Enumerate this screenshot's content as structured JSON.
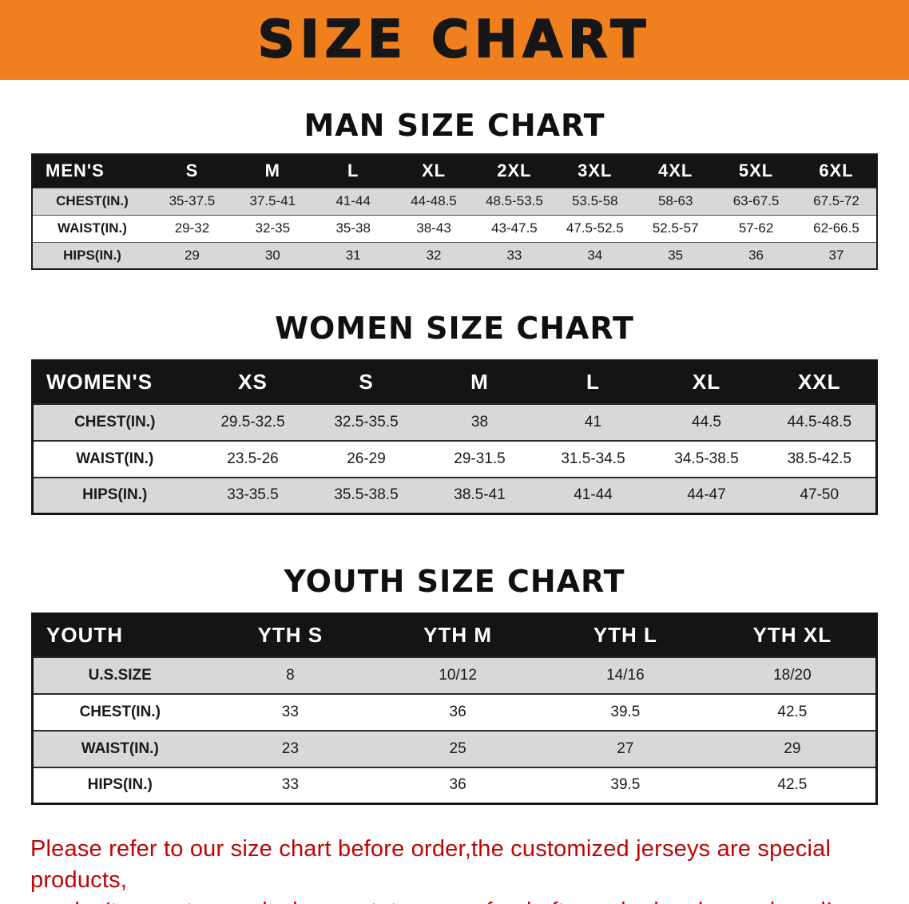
{
  "banner": {
    "title": "SIZE CHART",
    "bg": "#F0801E"
  },
  "sections": [
    {
      "heading": "MAN SIZE CHART",
      "table": {
        "header": [
          "MEN'S",
          "S",
          "M",
          "L",
          "XL",
          "2XL",
          "3XL",
          "4XL",
          "5XL",
          "6XL"
        ],
        "rows": [
          [
            "CHEST(IN.)",
            "35-37.5",
            "37.5-41",
            "41-44",
            "44-48.5",
            "48.5-53.5",
            "53.5-58",
            "58-63",
            "63-67.5",
            "67.5-72"
          ],
          [
            "WAIST(IN.)",
            "29-32",
            "32-35",
            "35-38",
            "38-43",
            "43-47.5",
            "47.5-52.5",
            "52.5-57",
            "57-62",
            "62-66.5"
          ],
          [
            "HIPS(IN.)",
            "29",
            "30",
            "31",
            "32",
            "33",
            "34",
            "35",
            "36",
            "37"
          ]
        ]
      }
    },
    {
      "heading": "WOMEN SIZE CHART",
      "table": {
        "header": [
          "WOMEN'S",
          "XS",
          "S",
          "M",
          "L",
          "XL",
          "XXL"
        ],
        "rows": [
          [
            "CHEST(IN.)",
            "29.5-32.5",
            "32.5-35.5",
            "38",
            "41",
            "44.5",
            "44.5-48.5"
          ],
          [
            "WAIST(IN.)",
            "23.5-26",
            "26-29",
            "29-31.5",
            "31.5-34.5",
            "34.5-38.5",
            "38.5-42.5"
          ],
          [
            "HIPS(IN.)",
            "33-35.5",
            "35.5-38.5",
            "38.5-41",
            "41-44",
            "44-47",
            "47-50"
          ]
        ]
      }
    },
    {
      "heading": "YOUTH SIZE CHART",
      "table": {
        "header": [
          "YOUTH",
          "YTH S",
          "YTH M",
          "YTH L",
          "YTH XL"
        ],
        "rows": [
          [
            "U.S.SIZE",
            "8",
            "10/12",
            "14/16",
            "18/20"
          ],
          [
            "CHEST(IN.)",
            "33",
            "36",
            "39.5",
            "42.5"
          ],
          [
            "WAIST(IN.)",
            "23",
            "25",
            "27",
            "29"
          ],
          [
            "HIPS(IN.)",
            "33",
            "36",
            "39.5",
            "42.5"
          ]
        ]
      }
    }
  ],
  "footer": {
    "line1": "Please refer to our size chart before order,the customized jerseys are special products,",
    "line2": "we don't accept cancel, change, teturn or refund after order has been placed!",
    "color": "#C00404"
  }
}
